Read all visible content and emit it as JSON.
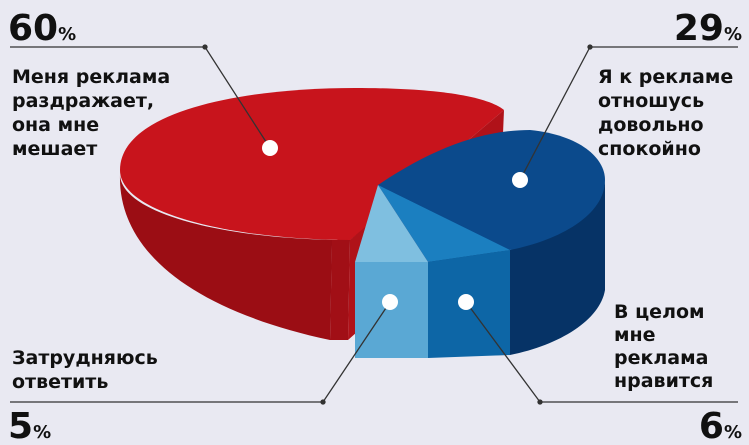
{
  "colors": {
    "background": "#e9e9f2",
    "slice_red_top": "#c8141c",
    "slice_red_side": "#9b0d14",
    "slice_navy_top": "#0b4a8c",
    "slice_navy_side": "#063366",
    "slice_mid_top": "#1b7fc0",
    "slice_mid_side": "#0d66a6",
    "slice_light_top": "#7fbfe0",
    "slice_light_side": "#5aa8d4",
    "marker": "#ffffff",
    "leader": "#333333"
  },
  "chart_data": {
    "type": "pie",
    "style": "3d-exploded",
    "unit": "%",
    "slices": [
      {
        "label_lines": [
          "Меня реклама",
          "раздражает,",
          "она мне",
          "мешает"
        ],
        "value": 60,
        "percent_text": "60",
        "color": "#c8141c"
      },
      {
        "label_lines": [
          "Я к рекламе",
          "отношусь",
          "довольно",
          "спокойно"
        ],
        "value": 29,
        "percent_text": "29",
        "color": "#0b4a8c"
      },
      {
        "label_lines": [
          "В целом",
          "мне",
          "реклама",
          "нравится"
        ],
        "value": 6,
        "percent_text": "6",
        "color": "#1b7fc0"
      },
      {
        "label_lines": [
          "Затрудняюсь",
          "ответить"
        ],
        "value": 5,
        "percent_text": "5",
        "color": "#7fbfe0"
      }
    ],
    "percent_sign": "%"
  }
}
